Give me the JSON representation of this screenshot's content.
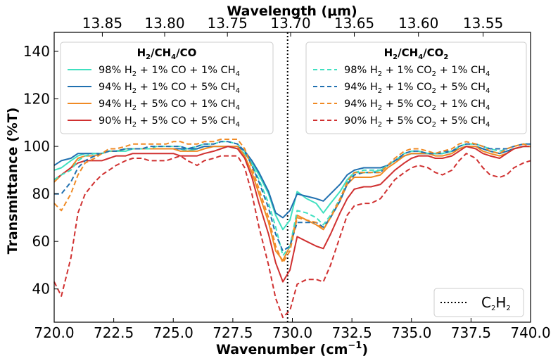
{
  "chart_data": {
    "type": "line",
    "xlabel": "Wavenumber (cm",
    "xlabel_sup": "−1",
    "xlabel_end": ")",
    "ylabel": "Transmittance (%T)",
    "top_xlabel": "Wavelength (μm)",
    "xlim": [
      720,
      740
    ],
    "ylim": [
      26,
      148
    ],
    "x_ticks": [
      720,
      722.5,
      725,
      727.5,
      730,
      732.5,
      735,
      737.5,
      740
    ],
    "x_tick_labels": [
      "720.0",
      "722.5",
      "725.0",
      "727.5",
      "730.0",
      "732.5",
      "735.0",
      "737.5",
      "740.0"
    ],
    "y_ticks": [
      40,
      60,
      80,
      100,
      120,
      140
    ],
    "y_tick_labels": [
      "40",
      "60",
      "80",
      "100",
      "120",
      "140"
    ],
    "top_ticks_um": [
      13.85,
      13.8,
      13.75,
      13.7,
      13.65,
      13.6,
      13.55
    ],
    "top_tick_labels": [
      "13.85",
      "13.80",
      "13.75",
      "13.70",
      "13.65",
      "13.60",
      "13.55"
    ],
    "vline": {
      "x": 729.8,
      "label": "C2H2",
      "color": "#000000"
    },
    "legend_left_title": "H2/CH4/CO",
    "legend_right_title": "H2/CH4/CO2",
    "x": [
      720,
      720.3,
      720.7,
      721.0,
      721.3,
      721.7,
      722.0,
      722.3,
      722.6,
      723.0,
      723.3,
      723.7,
      724.0,
      724.3,
      724.7,
      725.0,
      725.3,
      725.6,
      726.0,
      726.3,
      726.7,
      727.0,
      727.3,
      727.7,
      728.0,
      728.3,
      728.6,
      729.0,
      729.3,
      729.6,
      729.9,
      730.2,
      730.6,
      731.0,
      731.3,
      731.6,
      732.0,
      732.3,
      732.6,
      733.0,
      733.3,
      733.7,
      734.0,
      734.3,
      734.7,
      735.0,
      735.3,
      735.7,
      736.0,
      736.3,
      736.7,
      737.0,
      737.3,
      737.7,
      738.0,
      738.3,
      738.7,
      739.0,
      739.3,
      739.7,
      740.0
    ],
    "series": [
      {
        "name": "98% H2 + 1% CO + 1% CH4",
        "color": "#40e0c0",
        "dash": "solid",
        "label_parts": [
          "98% H",
          "2",
          " + 1% CO + 1% CH",
          "4"
        ],
        "values": [
          90,
          91,
          94,
          96,
          97,
          97,
          97,
          98,
          98,
          98,
          99,
          99,
          99,
          99,
          99,
          99,
          99,
          98,
          99,
          100,
          100,
          100,
          100,
          99,
          97,
          93,
          88,
          80,
          71,
          65,
          69,
          81,
          78,
          76,
          72,
          76,
          81,
          86,
          89,
          89,
          89,
          90,
          92,
          94,
          96,
          97,
          97,
          97,
          97,
          97,
          98,
          99,
          100,
          100,
          99,
          98,
          97,
          98,
          99,
          100,
          100
        ]
      },
      {
        "name": "94% H2 + 1% CO + 5% CH4",
        "color": "#2070b0",
        "dash": "solid",
        "label_parts": [
          "94% H",
          "2",
          " + 1% CO + 5% CH",
          "4"
        ],
        "values": [
          92,
          94,
          95,
          97,
          97,
          97,
          97,
          98,
          98,
          99,
          99,
          99,
          99,
          99,
          99,
          99,
          99,
          99,
          99,
          100,
          100,
          100,
          100,
          100,
          98,
          94,
          89,
          81,
          72,
          70,
          73,
          80,
          79,
          78,
          77,
          80,
          84,
          88,
          90,
          91,
          91,
          91,
          92,
          94,
          96,
          97,
          97,
          97,
          97,
          97,
          98,
          99,
          100,
          100,
          99,
          98,
          97,
          98,
          99,
          100,
          100
        ]
      },
      {
        "name": "94% H2 + 5% CO + 1% CH4",
        "color": "#f08a24",
        "dash": "solid",
        "label_parts": [
          "94% H",
          "2",
          " + 5% CO + 1% CH",
          "4"
        ],
        "values": [
          85,
          88,
          91,
          95,
          96,
          96,
          97,
          98,
          98,
          99,
          99,
          99,
          99,
          99,
          99,
          99,
          98,
          98,
          98,
          99,
          100,
          100,
          100,
          100,
          96,
          89,
          80,
          68,
          56,
          52,
          58,
          71,
          69,
          67,
          65,
          70,
          77,
          84,
          87,
          87,
          87,
          88,
          91,
          93,
          96,
          97,
          97,
          97,
          96,
          96,
          97,
          99,
          100,
          100,
          98,
          97,
          96,
          97,
          99,
          100,
          100
        ]
      },
      {
        "name": "90% H2 + 5% CO + 5% CH4",
        "color": "#d03030",
        "dash": "solid",
        "label_parts": [
          "90% H",
          "2",
          " + 5% CO + 5% CH",
          "4"
        ],
        "values": [
          86,
          88,
          91,
          93,
          94,
          94,
          94,
          95,
          96,
          96,
          97,
          97,
          97,
          97,
          97,
          97,
          96,
          96,
          96,
          97,
          98,
          99,
          100,
          99,
          95,
          87,
          76,
          63,
          51,
          43,
          48,
          62,
          60,
          58,
          57,
          63,
          72,
          78,
          82,
          83,
          83,
          84,
          87,
          90,
          93,
          95,
          96,
          96,
          95,
          95,
          96,
          98,
          100,
          99,
          97,
          96,
          95,
          97,
          99,
          100,
          100
        ]
      },
      {
        "name": "98% H2 + 1% CO2 + 1% CH4",
        "color": "#40e0c0",
        "dash": "dashed",
        "label_parts": [
          "98% H",
          "2",
          " + 1% CO",
          "2",
          " + 1% CH",
          "4"
        ],
        "values": [
          86,
          88,
          90,
          94,
          96,
          97,
          97,
          98,
          98,
          99,
          99,
          99,
          99,
          100,
          100,
          100,
          100,
          99,
          100,
          101,
          101,
          102,
          102,
          101,
          98,
          92,
          86,
          76,
          66,
          54,
          58,
          73,
          72,
          70,
          67,
          71,
          78,
          85,
          89,
          90,
          90,
          90,
          92,
          94,
          97,
          98,
          98,
          97,
          97,
          97,
          98,
          100,
          101,
          101,
          100,
          99,
          98,
          99,
          100,
          101,
          101
        ]
      },
      {
        "name": "94% H2 + 1% CO2 + 5% CH4",
        "color": "#2070b0",
        "dash": "dashed",
        "label_parts": [
          "94% H",
          "2",
          " + 1% CO",
          "2",
          " + 5% CH",
          "4"
        ],
        "values": [
          80,
          80,
          85,
          91,
          94,
          96,
          97,
          98,
          98,
          99,
          99,
          99,
          100,
          100,
          100,
          100,
          100,
          99,
          100,
          101,
          101,
          102,
          102,
          101,
          98,
          92,
          85,
          74,
          63,
          56,
          58,
          68,
          68,
          68,
          66,
          70,
          77,
          84,
          88,
          89,
          89,
          89,
          92,
          94,
          97,
          98,
          98,
          97,
          97,
          98,
          98,
          100,
          101,
          101,
          100,
          99,
          99,
          99,
          100,
          101,
          101
        ]
      },
      {
        "name": "94% H2 + 5% CO2 + 1% CH4",
        "color": "#f08a24",
        "dash": "dashed",
        "label_parts": [
          "94% H",
          "2",
          " + 5% CO",
          "2",
          " + 1% CH",
          "4"
        ],
        "values": [
          76,
          73,
          80,
          88,
          93,
          95,
          97,
          99,
          99,
          100,
          101,
          101,
          101,
          101,
          101,
          102,
          102,
          101,
          101,
          102,
          102,
          103,
          103,
          103,
          99,
          91,
          82,
          70,
          58,
          51,
          56,
          70,
          69,
          68,
          65,
          70,
          78,
          85,
          89,
          89,
          89,
          89,
          92,
          95,
          98,
          99,
          99,
          98,
          97,
          98,
          99,
          101,
          102,
          101,
          100,
          98,
          97,
          99,
          100,
          101,
          100
        ]
      },
      {
        "name": "90% H2 + 5% CO2 + 5% CH4",
        "color": "#d03030",
        "dash": "dashed",
        "label_parts": [
          "90% H",
          "2",
          " + 5% CO",
          "2",
          " + 5% CH",
          "4"
        ],
        "values": [
          43,
          37,
          53,
          72,
          80,
          85,
          88,
          90,
          92,
          94,
          95,
          95,
          94,
          94,
          94,
          95,
          96,
          94,
          92,
          94,
          95,
          96,
          96,
          96,
          91,
          80,
          66,
          50,
          36,
          28,
          31,
          42,
          44,
          44,
          43,
          50,
          62,
          71,
          75,
          76,
          76,
          78,
          82,
          86,
          89,
          91,
          92,
          91,
          89,
          88,
          90,
          94,
          97,
          95,
          91,
          88,
          87,
          88,
          91,
          93,
          94
        ]
      }
    ]
  }
}
